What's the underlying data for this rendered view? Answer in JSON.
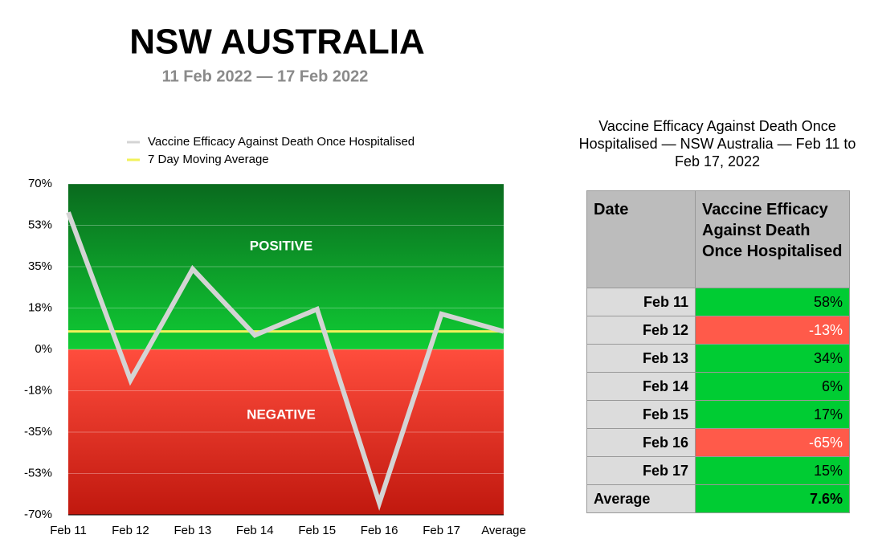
{
  "chart_data": {
    "type": "line",
    "title": "NSW AUSTRALIA",
    "subtitle": "11 Feb 2022 — 17 Feb 2022",
    "categories": [
      "Feb 11",
      "Feb 12",
      "Feb 13",
      "Feb 14",
      "Feb 15",
      "Feb 16",
      "Feb 17",
      "Average"
    ],
    "series": [
      {
        "name": "Vaccine Efficacy Against Death Once Hospitalised",
        "color": "#d4d4d4",
        "values": [
          58,
          -13,
          34,
          6,
          17,
          -65,
          15,
          7.6
        ]
      },
      {
        "name": "7 Day Moving Average",
        "color": "#f2f25a",
        "values": [
          7.6,
          7.6,
          7.6,
          7.6,
          7.6,
          7.6,
          7.6,
          7.6
        ]
      }
    ],
    "ylim": [
      -70,
      70
    ],
    "yticks": [
      {
        "value": 70,
        "label": "70%"
      },
      {
        "value": 52.5,
        "label": "53%"
      },
      {
        "value": 35,
        "label": "35%"
      },
      {
        "value": 17.5,
        "label": "18%"
      },
      {
        "value": 0,
        "label": "0%"
      },
      {
        "value": -17.5,
        "label": "-18%"
      },
      {
        "value": -35,
        "label": "-35%"
      },
      {
        "value": -52.5,
        "label": "-53%"
      },
      {
        "value": -70,
        "label": "-70%"
      }
    ],
    "annotations": [
      "POSITIVE",
      "NEGATIVE"
    ],
    "grid": true,
    "legend": "top"
  },
  "table": {
    "title": "Vaccine Efficacy Against Death Once Hospitalised — NSW Australia — Feb 11 to Feb 17, 2022",
    "header": [
      "Date",
      "Vaccine Efficacy Against Death Once Hospitalised"
    ],
    "rows": [
      {
        "date": "Feb 11",
        "value": "58%",
        "color": "#00cc33"
      },
      {
        "date": "Feb 12",
        "value": "-13%",
        "color": "#ff5a4a"
      },
      {
        "date": "Feb 13",
        "value": "34%",
        "color": "#00cc33"
      },
      {
        "date": "Feb 14",
        "value": "6%",
        "color": "#00cc33"
      },
      {
        "date": "Feb 15",
        "value": "17%",
        "color": "#00cc33"
      },
      {
        "date": "Feb 16",
        "value": "-65%",
        "color": "#ff5a4a"
      },
      {
        "date": "Feb 17",
        "value": "15%",
        "color": "#00cc33"
      },
      {
        "date": "Average",
        "value": "7.6%",
        "color": "#00cc33"
      }
    ]
  }
}
